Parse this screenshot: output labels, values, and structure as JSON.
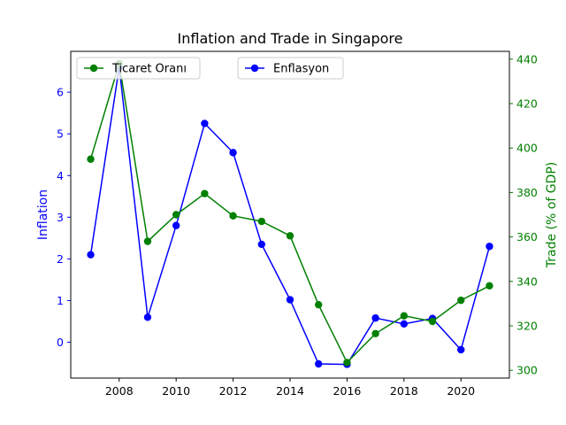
{
  "chart_data": {
    "type": "line",
    "title": "Inflation and Trade in Singapore",
    "x": [
      2007,
      2008,
      2009,
      2010,
      2011,
      2012,
      2013,
      2014,
      2015,
      2016,
      2017,
      2018,
      2019,
      2020,
      2021
    ],
    "x_ticks": [
      2008,
      2010,
      2012,
      2014,
      2016,
      2018,
      2020
    ],
    "xlim": [
      2006.3,
      2021.7
    ],
    "left_axis": {
      "label": "Inflation",
      "color": "#0000ff",
      "ylim": [
        -0.86,
        6.98
      ],
      "ticks": [
        0,
        1,
        2,
        3,
        4,
        5,
        6
      ]
    },
    "right_axis": {
      "label": "Trade (% of GDP)",
      "color": "#008000",
      "ylim": [
        296.5,
        443.5
      ],
      "ticks": [
        300,
        320,
        340,
        360,
        380,
        400,
        420,
        440
      ]
    },
    "series": [
      {
        "name": "Enflasyon",
        "axis": "left",
        "color": "#0000ff",
        "values": [
          2.1,
          6.6,
          0.6,
          2.8,
          5.25,
          4.55,
          2.35,
          1.02,
          -0.52,
          -0.53,
          0.58,
          0.44,
          0.57,
          -0.18,
          2.3
        ]
      },
      {
        "name": "Ticaret Oranı",
        "axis": "right",
        "color": "#008000",
        "values": [
          395,
          438,
          358,
          370,
          379.5,
          369.5,
          367,
          360.5,
          329.5,
          303.5,
          316.5,
          324.5,
          322,
          331.5,
          338
        ]
      }
    ],
    "legends": [
      {
        "series": "Ticaret Oranı",
        "position": "upper-left"
      },
      {
        "series": "Enflasyon",
        "position": "upper-center"
      }
    ],
    "grid": false
  }
}
